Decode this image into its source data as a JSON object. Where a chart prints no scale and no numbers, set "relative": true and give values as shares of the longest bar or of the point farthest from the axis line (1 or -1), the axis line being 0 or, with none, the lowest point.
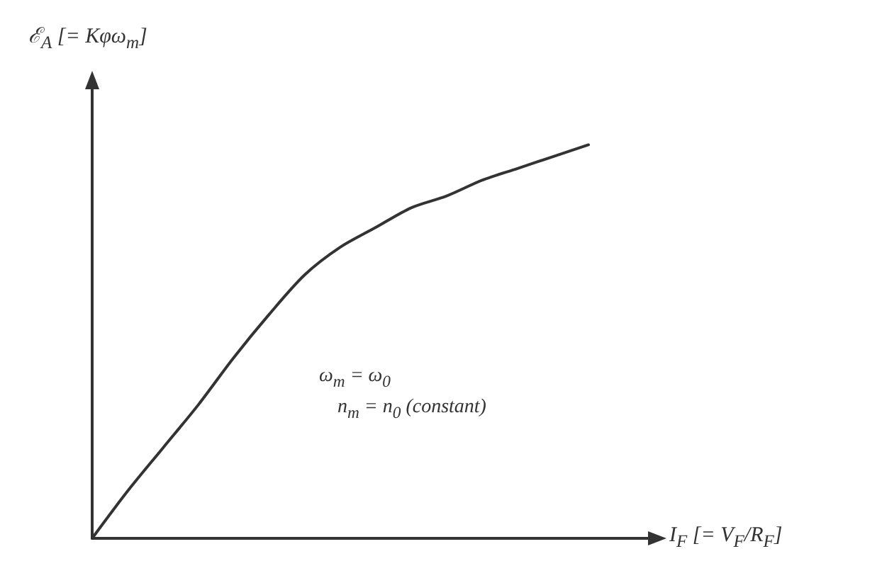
{
  "chart_data": {
    "type": "line",
    "relative": true,
    "ylabel": "ℰ$_{A}$ [= Kφω$_{m}$]",
    "xlabel": "I$_{F}$   [= V$_{F}$/R$_{F}$]",
    "annotations": [
      "ω$_{m}$ = ω$_{0}$",
      "n$_{m}$ = n$_{0}$ (constant)"
    ],
    "categories": [
      null,
      null,
      null,
      null,
      null,
      null,
      null,
      null,
      null,
      null,
      null,
      null,
      null,
      null,
      null,
      null,
      null
    ],
    "series": [
      {
        "color": "#333333",
        "values": [
          0,
          0.12,
          0.23,
          0.34,
          0.46,
          0.57,
          0.67,
          0.74,
          0.79,
          0.84,
          0.87,
          0.91,
          0.94,
          0.97,
          1,
          null,
          null
        ]
      }
    ],
    "grid": false,
    "marker": "none",
    "line_style": "solid"
  }
}
